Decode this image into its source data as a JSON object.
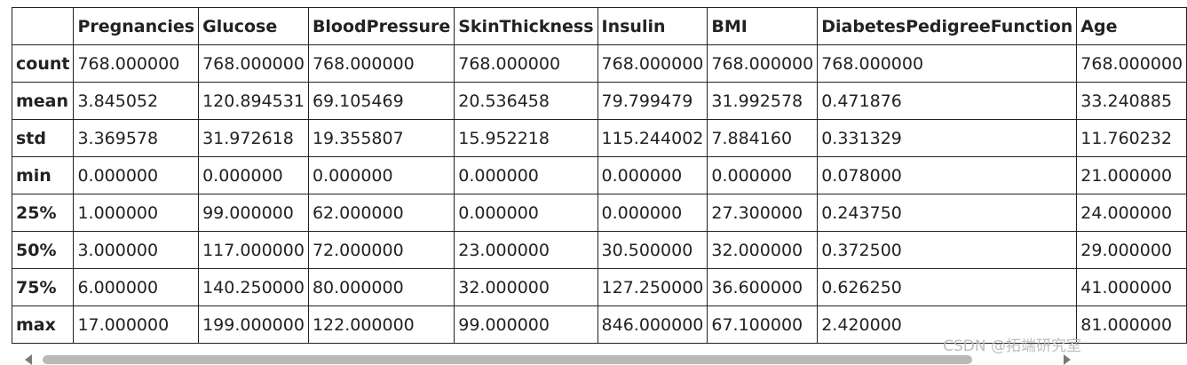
{
  "table": {
    "columns": [
      "",
      "Pregnancies",
      "Glucose",
      "BloodPressure",
      "SkinThickness",
      "Insulin",
      "BMI",
      "DiabetesPedigreeFunction",
      "Age"
    ],
    "rows": [
      [
        "count",
        "768.000000",
        "768.000000",
        "768.000000",
        "768.000000",
        "768.000000",
        "768.000000",
        "768.000000",
        "768.000000"
      ],
      [
        "mean",
        "3.845052",
        "120.894531",
        "69.105469",
        "20.536458",
        "79.799479",
        "31.992578",
        "0.471876",
        "33.240885"
      ],
      [
        "std",
        "3.369578",
        "31.972618",
        "19.355807",
        "15.952218",
        "115.244002",
        "7.884160",
        "0.331329",
        "11.760232"
      ],
      [
        "min",
        "0.000000",
        "0.000000",
        "0.000000",
        "0.000000",
        "0.000000",
        "0.000000",
        "0.078000",
        "21.000000"
      ],
      [
        "25%",
        "1.000000",
        "99.000000",
        "62.000000",
        "0.000000",
        "0.000000",
        "27.300000",
        "0.243750",
        "24.000000"
      ],
      [
        "50%",
        "3.000000",
        "117.000000",
        "72.000000",
        "23.000000",
        "30.500000",
        "32.000000",
        "0.372500",
        "29.000000"
      ],
      [
        "75%",
        "6.000000",
        "140.250000",
        "80.000000",
        "32.000000",
        "127.250000",
        "36.600000",
        "0.626250",
        "41.000000"
      ],
      [
        "max",
        "17.000000",
        "199.000000",
        "122.000000",
        "99.000000",
        "846.000000",
        "67.100000",
        "2.420000",
        "81.000000"
      ]
    ]
  },
  "watermark": "CSDN @拓端研究室",
  "scrollbar": {
    "thumb_color": "#b9b9b9",
    "arrow_color": "#7a7a7a"
  }
}
